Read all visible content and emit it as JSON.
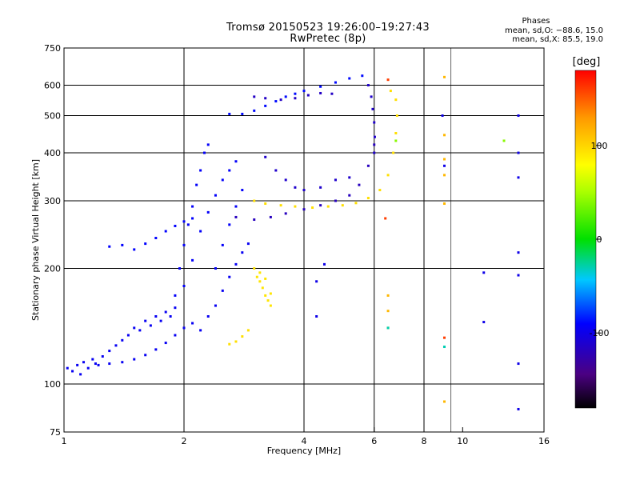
{
  "header": {
    "title_line1": "Tromsø 20150523 19:26:00–19:27:43",
    "title_line2": "RwPretec (8p)"
  },
  "stats": {
    "heading": "Phases",
    "line_o": "mean, sd,O: −88.6, 15.0",
    "line_x": "mean, sd,X:  85.5, 19.0"
  },
  "chart_data": {
    "type": "scatter",
    "title": "Tromsø 20150523 19:26:00–19:27:43",
    "subtitle": "RwPretec (8p)",
    "xlabel": "Frequency [MHz]",
    "ylabel": "Stationary phase Virtual Height [km]",
    "x_scale": "log",
    "y_scale": "log",
    "xlim": [
      1,
      16
    ],
    "ylim": [
      75,
      750
    ],
    "x_ticks": [
      1,
      2,
      4,
      6,
      8,
      10,
      16
    ],
    "y_ticks": [
      75,
      100,
      200,
      300,
      400,
      500,
      600,
      750
    ],
    "x_grid": [
      2,
      4,
      6,
      8
    ],
    "y_grid": [
      100,
      200,
      300,
      400,
      500,
      600
    ],
    "colorbar": {
      "label": "[deg]",
      "range": [
        -180,
        180
      ],
      "ticks": [
        100,
        0,
        -100
      ]
    },
    "series": [
      {
        "phase": -95,
        "points": [
          [
            1.02,
            110
          ],
          [
            1.05,
            108
          ],
          [
            1.08,
            112
          ],
          [
            1.1,
            106
          ],
          [
            1.12,
            114
          ],
          [
            1.15,
            110
          ],
          [
            1.18,
            116
          ],
          [
            1.22,
            112
          ],
          [
            1.25,
            118
          ],
          [
            1.3,
            122
          ],
          [
            1.35,
            126
          ],
          [
            1.4,
            130
          ],
          [
            1.45,
            134
          ],
          [
            1.5,
            140
          ],
          [
            1.55,
            138
          ],
          [
            1.6,
            146
          ],
          [
            1.65,
            142
          ],
          [
            1.7,
            150
          ],
          [
            1.75,
            146
          ],
          [
            1.8,
            154
          ],
          [
            1.85,
            150
          ],
          [
            1.9,
            158
          ]
        ]
      },
      {
        "phase": -95,
        "points": [
          [
            1.2,
            113
          ],
          [
            1.3,
            113
          ],
          [
            1.4,
            114
          ],
          [
            1.5,
            116
          ],
          [
            1.6,
            119
          ],
          [
            1.7,
            123
          ],
          [
            1.8,
            128
          ],
          [
            1.9,
            134
          ],
          [
            2.0,
            140
          ],
          [
            2.1,
            144
          ],
          [
            2.2,
            138
          ],
          [
            2.3,
            150
          ],
          [
            2.4,
            160
          ],
          [
            2.5,
            175
          ],
          [
            2.6,
            190
          ],
          [
            2.7,
            205
          ],
          [
            2.8,
            220
          ],
          [
            2.9,
            232
          ]
        ]
      },
      {
        "phase": -90,
        "points": [
          [
            1.3,
            228
          ],
          [
            1.4,
            230
          ],
          [
            1.5,
            224
          ],
          [
            1.6,
            232
          ],
          [
            1.7,
            240
          ],
          [
            1.8,
            250
          ],
          [
            1.9,
            258
          ],
          [
            2.0,
            265
          ],
          [
            2.1,
            270
          ]
        ]
      },
      {
        "phase": -92,
        "points": [
          [
            1.9,
            170
          ],
          [
            1.95,
            200
          ],
          [
            2.0,
            230
          ],
          [
            2.05,
            260
          ],
          [
            2.1,
            290
          ],
          [
            2.15,
            330
          ],
          [
            2.2,
            360
          ],
          [
            2.25,
            400
          ],
          [
            2.3,
            420
          ],
          [
            2.0,
            180
          ],
          [
            2.1,
            210
          ],
          [
            2.2,
            250
          ],
          [
            2.3,
            280
          ],
          [
            2.4,
            310
          ],
          [
            2.5,
            340
          ],
          [
            2.6,
            360
          ],
          [
            2.7,
            380
          ],
          [
            2.4,
            200
          ],
          [
            2.5,
            230
          ],
          [
            2.6,
            260
          ],
          [
            2.7,
            290
          ],
          [
            2.8,
            320
          ]
        ]
      },
      {
        "phase": -88,
        "points": [
          [
            2.6,
            505
          ],
          [
            2.8,
            505
          ],
          [
            3.0,
            515
          ],
          [
            3.2,
            530
          ],
          [
            3.4,
            545
          ],
          [
            3.6,
            560
          ],
          [
            3.8,
            570
          ],
          [
            4.0,
            580
          ],
          [
            4.4,
            595
          ],
          [
            4.8,
            610
          ],
          [
            5.2,
            625
          ],
          [
            5.6,
            635
          ]
        ]
      },
      {
        "phase": -115,
        "points": [
          [
            3.0,
            560
          ],
          [
            3.2,
            555
          ],
          [
            3.5,
            550
          ],
          [
            3.8,
            555
          ],
          [
            4.1,
            565
          ],
          [
            4.4,
            572
          ],
          [
            4.7,
            570
          ]
        ]
      },
      {
        "phase": -118,
        "points": [
          [
            2.7,
            272
          ],
          [
            3.0,
            268
          ],
          [
            3.3,
            272
          ],
          [
            3.6,
            278
          ],
          [
            4.0,
            285
          ],
          [
            4.4,
            292
          ],
          [
            4.8,
            300
          ],
          [
            5.2,
            310
          ],
          [
            5.5,
            330
          ],
          [
            5.8,
            370
          ],
          [
            6.0,
            420
          ]
        ]
      },
      {
        "phase": -112,
        "points": [
          [
            3.2,
            390
          ],
          [
            3.4,
            360
          ],
          [
            3.6,
            340
          ],
          [
            3.8,
            325
          ],
          [
            4.0,
            320
          ],
          [
            4.4,
            325
          ],
          [
            4.8,
            340
          ],
          [
            5.2,
            345
          ]
        ]
      },
      {
        "phase": -112,
        "points": [
          [
            5.8,
            600
          ],
          [
            5.9,
            560
          ],
          [
            5.95,
            520
          ],
          [
            6.0,
            480
          ],
          [
            6.02,
            440
          ],
          [
            6.0,
            400
          ]
        ]
      },
      {
        "phase": 95,
        "points": [
          [
            3.0,
            300
          ],
          [
            3.2,
            295
          ],
          [
            3.5,
            292
          ],
          [
            3.8,
            290
          ],
          [
            4.2,
            288
          ],
          [
            4.6,
            290
          ],
          [
            5.0,
            292
          ],
          [
            5.4,
            296
          ],
          [
            5.8,
            305
          ],
          [
            6.2,
            320
          ],
          [
            6.5,
            350
          ],
          [
            6.7,
            400
          ],
          [
            6.8,
            450
          ],
          [
            6.85,
            500
          ],
          [
            6.8,
            550
          ],
          [
            6.6,
            580
          ]
        ]
      },
      {
        "phase": 92,
        "points": [
          [
            3.0,
            200
          ],
          [
            3.05,
            190
          ],
          [
            3.1,
            185
          ],
          [
            3.15,
            178
          ],
          [
            3.2,
            170
          ],
          [
            3.25,
            165
          ],
          [
            3.3,
            160
          ],
          [
            3.1,
            195
          ],
          [
            3.2,
            188
          ],
          [
            3.3,
            172
          ]
        ]
      },
      {
        "phase": 95,
        "points": [
          [
            2.6,
            127
          ],
          [
            2.7,
            129
          ],
          [
            2.8,
            133
          ],
          [
            2.9,
            138
          ]
        ]
      },
      {
        "phase": 115,
        "points": [
          [
            9.0,
            630
          ],
          [
            9.0,
            445
          ],
          [
            9.0,
            385
          ],
          [
            9.0,
            350
          ],
          [
            9.0,
            295
          ],
          [
            9.0,
            90
          ],
          [
            6.5,
            170
          ],
          [
            6.5,
            155
          ],
          [
            6.5,
            140
          ]
        ]
      },
      {
        "phase": -100,
        "points": [
          [
            8.9,
            500
          ],
          [
            9.0,
            370
          ],
          [
            13.8,
            400
          ],
          [
            13.8,
            345
          ],
          [
            13.8,
            220
          ],
          [
            13.8,
            192
          ],
          [
            13.8,
            113
          ],
          [
            13.8,
            86
          ],
          [
            13.8,
            500
          ],
          [
            11.3,
            195
          ],
          [
            11.3,
            145
          ],
          [
            4.5,
            205
          ],
          [
            4.3,
            185
          ],
          [
            4.3,
            150
          ],
          [
            9.0,
            125
          ]
        ]
      },
      {
        "phase": 160,
        "points": [
          [
            6.5,
            620
          ],
          [
            6.4,
            270
          ],
          [
            9.0,
            132
          ]
        ]
      },
      {
        "phase": 40,
        "points": [
          [
            12.7,
            430
          ],
          [
            6.8,
            430
          ]
        ]
      },
      {
        "phase": -30,
        "points": [
          [
            6.5,
            140
          ],
          [
            9.0,
            125
          ]
        ]
      }
    ]
  }
}
